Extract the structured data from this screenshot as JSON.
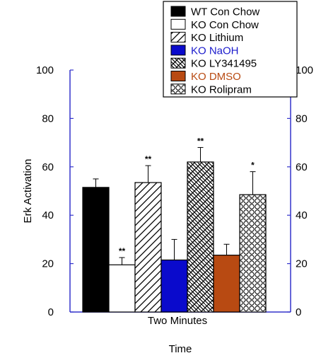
{
  "chart_data": {
    "type": "bar",
    "categories": [
      "Two Minutes"
    ],
    "xlabel": "Time",
    "ylabel": "Erk Activation",
    "ylim": [
      0,
      100
    ],
    "yticks": [
      "0",
      "20",
      "40",
      "60",
      "80",
      "100"
    ],
    "legend_position": "top-right",
    "series": [
      {
        "name": "WT Con Chow",
        "value": 51.5,
        "error": 3.5,
        "annotation": "",
        "fill": "solid",
        "color": "#000000",
        "label_color": "#000000"
      },
      {
        "name": "KO Con Chow",
        "value": 19.5,
        "error": 3.0,
        "annotation": "**",
        "fill": "white",
        "color": "#ffffff",
        "label_color": "#000000"
      },
      {
        "name": "KO Lithium",
        "value": 53.5,
        "error": 7.0,
        "annotation": "**",
        "fill": "diagonal",
        "color": "#ffffff",
        "label_color": "#000000"
      },
      {
        "name": "KO NaOH",
        "value": 21.5,
        "error": 8.5,
        "annotation": "",
        "fill": "solid",
        "color": "#0a0acc",
        "label_color": "#1a1acc"
      },
      {
        "name": "KO LY341495",
        "value": 62.0,
        "error": 6.0,
        "annotation": "**",
        "fill": "weave",
        "color": "#ffffff",
        "label_color": "#000000"
      },
      {
        "name": "KO DMSO",
        "value": 23.5,
        "error": 4.5,
        "annotation": "",
        "fill": "solid",
        "color": "#b84a12",
        "label_color": "#b84a12"
      },
      {
        "name": "KO Rolipram",
        "value": 48.5,
        "error": 9.5,
        "annotation": "*",
        "fill": "circles",
        "color": "#ffffff",
        "label_color": "#000000"
      }
    ]
  }
}
